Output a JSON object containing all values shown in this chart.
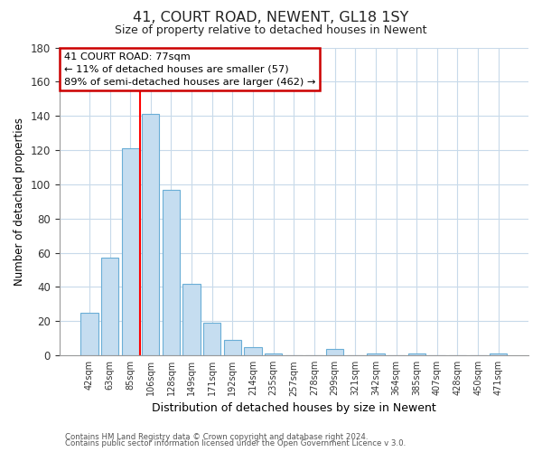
{
  "title": "41, COURT ROAD, NEWENT, GL18 1SY",
  "subtitle": "Size of property relative to detached houses in Newent",
  "xlabel": "Distribution of detached houses by size in Newent",
  "ylabel": "Number of detached properties",
  "bar_labels": [
    "42sqm",
    "63sqm",
    "85sqm",
    "106sqm",
    "128sqm",
    "149sqm",
    "171sqm",
    "192sqm",
    "214sqm",
    "235sqm",
    "257sqm",
    "278sqm",
    "299sqm",
    "321sqm",
    "342sqm",
    "364sqm",
    "385sqm",
    "407sqm",
    "428sqm",
    "450sqm",
    "471sqm"
  ],
  "bar_values": [
    25,
    57,
    121,
    141,
    97,
    42,
    19,
    9,
    5,
    1,
    0,
    0,
    4,
    0,
    1,
    0,
    1,
    0,
    0,
    0,
    1
  ],
  "bar_color": "#c5ddf0",
  "bar_edge_color": "#6aaed6",
  "ylim": [
    0,
    180
  ],
  "yticks": [
    0,
    20,
    40,
    60,
    80,
    100,
    120,
    140,
    160,
    180
  ],
  "red_line_x": 2.5,
  "annotation_title": "41 COURT ROAD: 77sqm",
  "annotation_line1": "← 11% of detached houses are smaller (57)",
  "annotation_line2": "89% of semi-detached houses are larger (462) →",
  "annotation_box_color": "#ffffff",
  "annotation_box_edge": "#cc0000",
  "footer_line1": "Contains HM Land Registry data © Crown copyright and database right 2024.",
  "footer_line2": "Contains public sector information licensed under the Open Government Licence v 3.0.",
  "background_color": "#ffffff",
  "grid_color": "#c8daea"
}
